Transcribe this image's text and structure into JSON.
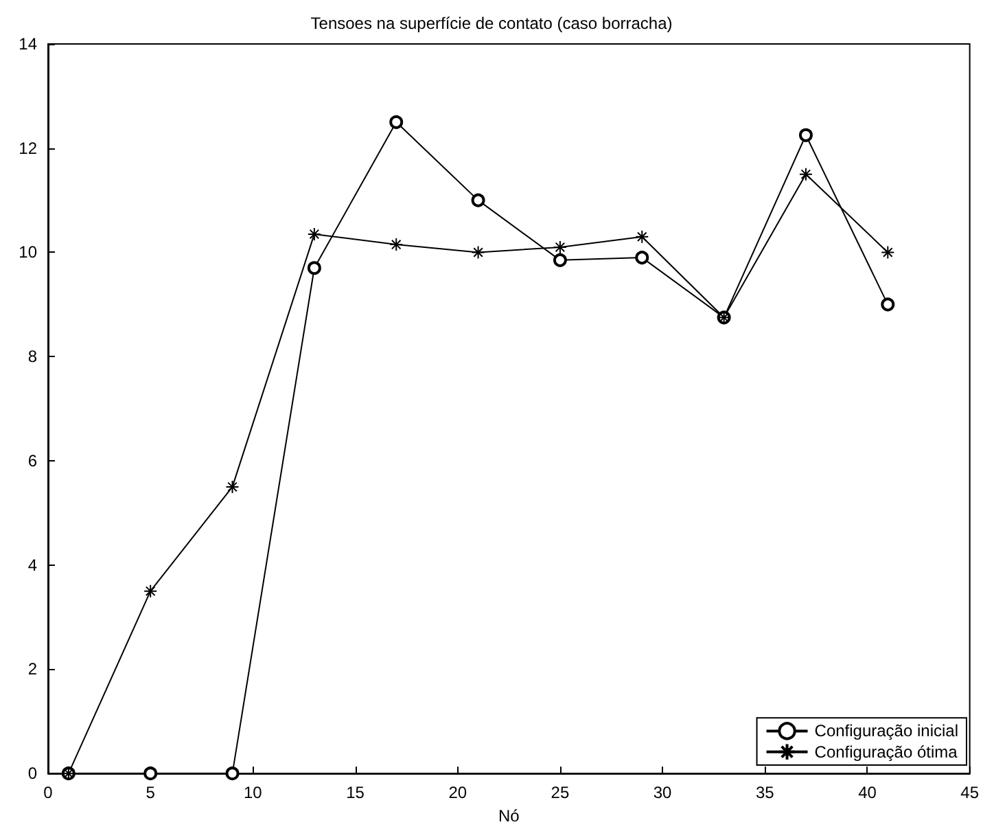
{
  "chart_data": {
    "type": "line",
    "title": "Tensoes na superfície de contato (caso borracha)",
    "xlabel": "Nó",
    "xlim": [
      0,
      45
    ],
    "xticks": [
      0,
      5,
      10,
      15,
      20,
      25,
      30,
      35,
      40,
      45
    ],
    "ylim": [
      0,
      14
    ],
    "yticks": [
      0,
      2,
      4,
      6,
      8,
      10,
      12,
      14
    ],
    "grid": false,
    "legend": "bottom right",
    "series": [
      {
        "name": "Configuração inicial",
        "color": "#000000",
        "marker": "circle",
        "x": [
          1,
          5,
          9,
          13,
          17,
          21,
          25,
          29,
          33,
          37,
          41
        ],
        "values": [
          0,
          0,
          0,
          9.7,
          12.5,
          11.0,
          9.85,
          9.9,
          8.75,
          12.25,
          9.0
        ]
      },
      {
        "name": "Configuração ótima",
        "color": "#000000",
        "marker": "cross",
        "x": [
          1,
          5,
          9,
          13,
          17,
          21,
          25,
          29,
          33,
          37,
          41
        ],
        "values": [
          0,
          3.5,
          5.5,
          10.35,
          10.15,
          10.0,
          10.1,
          10.3,
          8.75,
          11.5,
          10.0
        ]
      }
    ]
  }
}
